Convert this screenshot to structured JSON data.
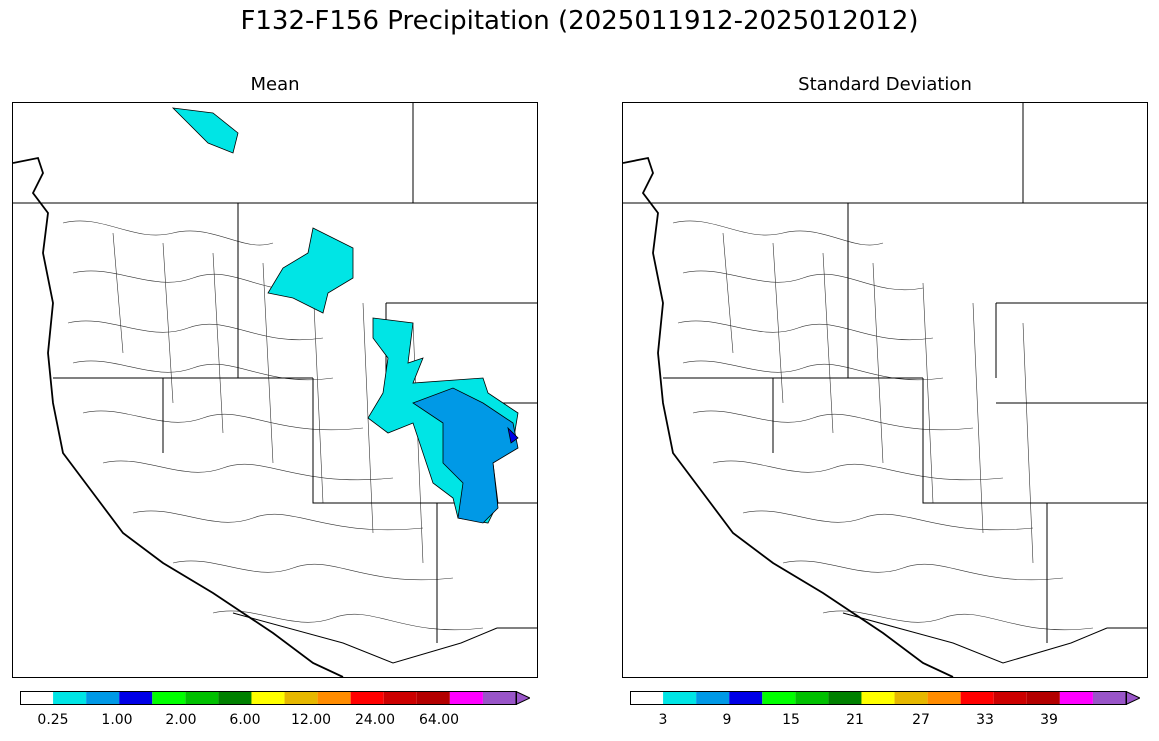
{
  "figure": {
    "title": "F132-F156 Precipitation (2025011912-2025012012)"
  },
  "panels": [
    {
      "title": "Mean",
      "colorbar": {
        "colors": [
          "#ffffff",
          "#00e5e5",
          "#0099e6",
          "#0000e6",
          "#00ff00",
          "#00c000",
          "#008000",
          "#ffff00",
          "#e6b800",
          "#ff8c00",
          "#ff0000",
          "#cc0000",
          "#b30000",
          "#ff00ff",
          "#9955c8"
        ],
        "tick_labels": [
          "0.25",
          "1.00",
          "2.00",
          "6.00",
          "12.00",
          "24.00",
          "64.00"
        ],
        "extend": "max"
      }
    },
    {
      "title": "Standard Deviation",
      "colorbar": {
        "colors": [
          "#ffffff",
          "#00e5e5",
          "#0099e6",
          "#0000e6",
          "#00ff00",
          "#00c000",
          "#008000",
          "#ffff00",
          "#e6b800",
          "#ff8c00",
          "#ff0000",
          "#cc0000",
          "#b30000",
          "#ff00ff",
          "#9955c8"
        ],
        "tick_labels": [
          "3",
          "9",
          "15",
          "21",
          "27",
          "33",
          "39"
        ],
        "extend": "max"
      }
    }
  ]
}
